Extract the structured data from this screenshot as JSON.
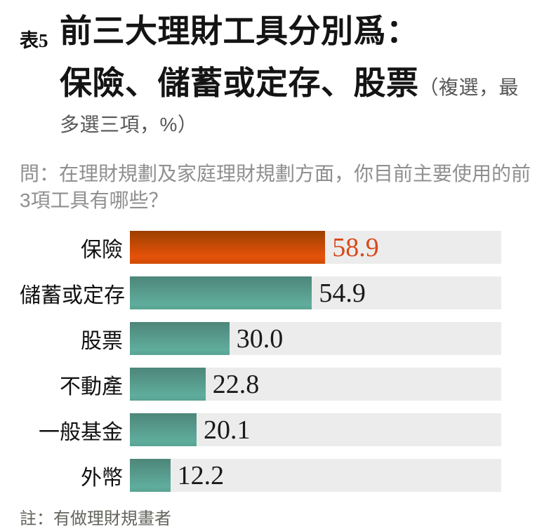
{
  "header": {
    "table_label": "表5",
    "title_line1": "前三大理財工具分別爲：",
    "title_line2": "保險、儲蓄或定存、股票",
    "title_suffix_line2": "（複選，最",
    "title_suffix_line3": "多選三項，%）"
  },
  "question": "問：在理財規劃及家庭理財規劃方面，你目前主要使用的前3項工具有哪些？",
  "note": "註：有做理財規畫者",
  "chart_data": {
    "type": "bar",
    "orientation": "horizontal",
    "title": "前三大理財工具分別爲：保險、儲蓄或定存、股票（複選，最多選三項，%）",
    "categories": [
      "保險",
      "儲蓄或定存",
      "股票",
      "不動產",
      "一般基金",
      "外幣"
    ],
    "values": [
      58.9,
      54.9,
      30.0,
      22.8,
      20.1,
      12.2
    ],
    "value_labels": [
      "58.9",
      "54.9",
      "30.0",
      "22.8",
      "20.1",
      "12.2"
    ],
    "unit": "%",
    "xlim": [
      0,
      112
    ],
    "grid": false,
    "legend": false,
    "highlight_index": 0,
    "colors": {
      "highlight_bar": "#e5520a",
      "bar": "#5aa797",
      "track": "#ececec",
      "value_label": "#1a1a1a",
      "highlight_value_label": "#d8491a"
    }
  }
}
